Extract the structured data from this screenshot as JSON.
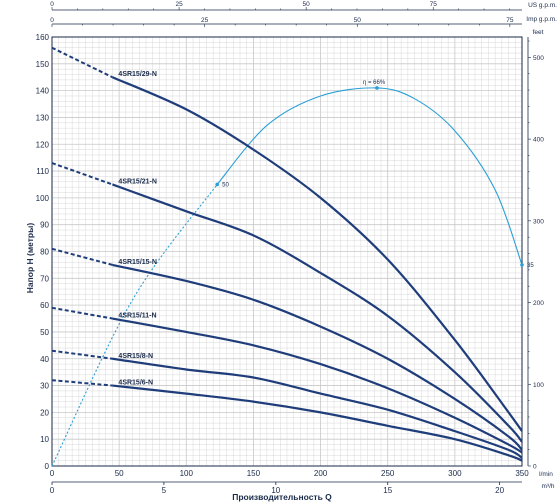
{
  "chart_data": {
    "type": "line",
    "xlabel": "Производительность Q",
    "ylabel": "Напор H (метры)",
    "x_unit": "l/min",
    "x_unit2": "m³/h",
    "top_unit_us": "US g.p.m.",
    "top_unit_imp": "Imp g.p.m.",
    "right_unit": "feet",
    "xlim": [
      0,
      350
    ],
    "ylim": [
      0,
      160
    ],
    "grid": true,
    "x_ticks": [
      "0",
      "50",
      "100",
      "150",
      "200",
      "250",
      "300",
      "350"
    ],
    "y_ticks": [
      "0",
      "10",
      "20",
      "30",
      "40",
      "50",
      "60",
      "70",
      "80",
      "90",
      "100",
      "110",
      "120",
      "130",
      "140",
      "150",
      "160"
    ],
    "x2_ticks": [
      "0",
      "5",
      "10",
      "15",
      "20"
    ],
    "us_ticks": [
      "0",
      "25",
      "50",
      "75"
    ],
    "imp_ticks": [
      "0",
      "25",
      "50",
      "75"
    ],
    "feet_ticks": [
      "0",
      "100",
      "200",
      "300",
      "400",
      "500"
    ],
    "series": [
      {
        "name": "4SR15/29-N",
        "x": [
          0,
          45,
          100,
          150,
          200,
          250,
          300,
          340,
          350
        ],
        "y": [
          156,
          145,
          133,
          118,
          100,
          77,
          47,
          20,
          13
        ]
      },
      {
        "name": "4SR15/21-N",
        "x": [
          0,
          45,
          100,
          150,
          200,
          250,
          300,
          340,
          350
        ],
        "y": [
          113,
          105,
          95,
          86,
          72,
          56,
          35,
          15,
          9
        ]
      },
      {
        "name": "4SR15/15-N",
        "x": [
          0,
          45,
          100,
          150,
          200,
          250,
          300,
          340,
          350
        ],
        "y": [
          81,
          75,
          69,
          62,
          52,
          40,
          25,
          11,
          6
        ]
      },
      {
        "name": "4SR15/11-N",
        "x": [
          0,
          45,
          100,
          150,
          200,
          250,
          300,
          340,
          350
        ],
        "y": [
          59,
          55,
          50,
          45,
          38,
          29,
          18,
          8,
          5
        ]
      },
      {
        "name": "4SR15/8-N",
        "x": [
          0,
          45,
          100,
          150,
          200,
          250,
          300,
          340,
          350
        ],
        "y": [
          43,
          40,
          36,
          33,
          27,
          21,
          13,
          6,
          3
        ]
      },
      {
        "name": "4SR15/6-N",
        "x": [
          0,
          45,
          100,
          150,
          200,
          250,
          300,
          340,
          350
        ],
        "y": [
          32,
          30,
          27,
          24,
          20,
          15,
          10,
          4,
          2
        ]
      }
    ],
    "efficiency": {
      "x": [
        0,
        60,
        123,
        160,
        200,
        242,
        270,
        300,
        330,
        350
      ],
      "y": [
        0,
        62,
        105,
        127,
        138,
        141,
        137,
        125,
        103,
        75
      ],
      "labels": [
        {
          "text": "η = 66%",
          "x": 242,
          "y": 141
        },
        {
          "text": "50",
          "x": 123,
          "y": 105
        },
        {
          "text": "35",
          "x": 350,
          "y": 75
        }
      ]
    },
    "colors": {
      "pump": "#1f3d7a",
      "efficiency": "#2a9fd6",
      "grid": "#c8c8c8",
      "axis": "#1a2a4a"
    }
  }
}
